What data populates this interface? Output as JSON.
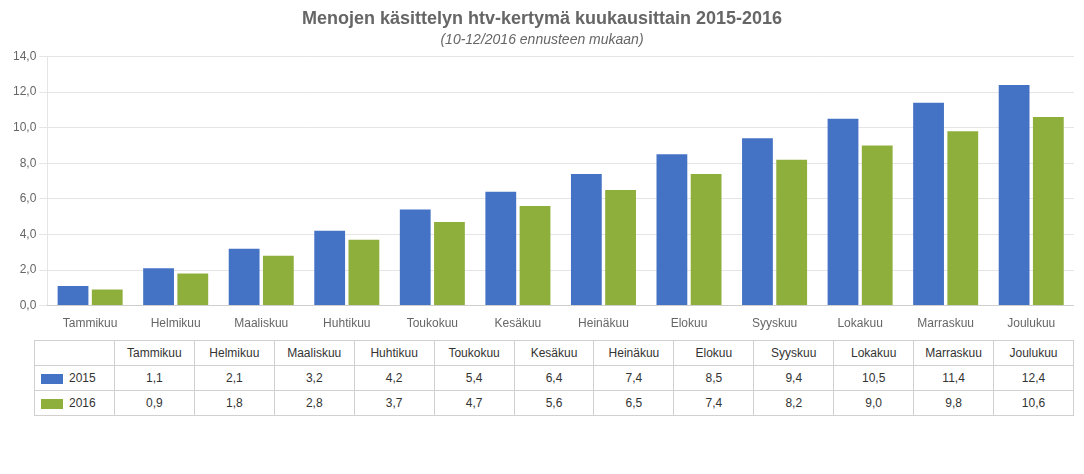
{
  "chart_data": {
    "type": "bar",
    "title": "Menojen käsittelyn htv-kertymä kuukausittain 2015-2016",
    "subtitle": "(10-12/2016 ennusteen mukaan)",
    "categories": [
      "Tammikuu",
      "Helmikuu",
      "Maaliskuu",
      "Huhtikuu",
      "Toukokuu",
      "Kesäkuu",
      "Heinäkuu",
      "Elokuu",
      "Syyskuu",
      "Lokakuu",
      "Marraskuu",
      "Joulukuu"
    ],
    "series": [
      {
        "name": "2015",
        "color": "#4472C4",
        "values": [
          1.1,
          2.1,
          3.2,
          4.2,
          5.4,
          6.4,
          7.4,
          8.5,
          9.4,
          10.5,
          11.4,
          12.4
        ],
        "value_labels": [
          "1,1",
          "2,1",
          "3,2",
          "4,2",
          "5,4",
          "6,4",
          "7,4",
          "8,5",
          "9,4",
          "10,5",
          "11,4",
          "12,4"
        ]
      },
      {
        "name": "2016",
        "color": "#8FAF3C",
        "values": [
          0.9,
          1.8,
          2.8,
          3.7,
          4.7,
          5.6,
          6.5,
          7.4,
          8.2,
          9.0,
          9.8,
          10.6
        ],
        "value_labels": [
          "0,9",
          "1,8",
          "2,8",
          "3,7",
          "4,7",
          "5,6",
          "6,5",
          "7,4",
          "8,2",
          "9,0",
          "9,8",
          "10,6"
        ]
      }
    ],
    "ylim": [
      0,
      14.0
    ],
    "yticks": [
      {
        "value": 0.0,
        "label": "0,0"
      },
      {
        "value": 2.0,
        "label": "2,0"
      },
      {
        "value": 4.0,
        "label": "4,0"
      },
      {
        "value": 6.0,
        "label": "6,0"
      },
      {
        "value": 8.0,
        "label": "8,0"
      },
      {
        "value": 10.0,
        "label": "10,0"
      },
      {
        "value": 12.0,
        "label": "12,0"
      },
      {
        "value": 14.0,
        "label": "14,0"
      }
    ],
    "grid": true
  }
}
